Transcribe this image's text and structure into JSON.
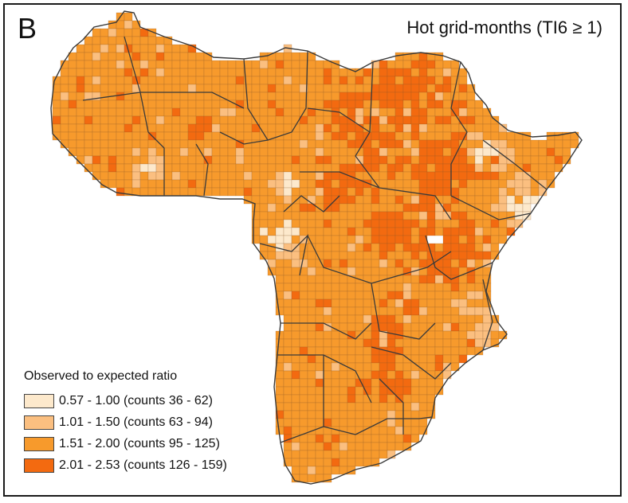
{
  "panel_label": "B",
  "title": "Hot grid-months (TI6 ≥ 1)",
  "legend": {
    "title": "Observed to expected ratio",
    "items": [
      {
        "label": "0.57 - 1.00 (counts 36 - 62)",
        "color": "#fde9cc"
      },
      {
        "label": "1.01 - 1.50 (counts 63 - 94)",
        "color": "#fbbf80"
      },
      {
        "label": "1.51 - 2.00 (counts 95 - 125)",
        "color": "#f79a2c"
      },
      {
        "label": "2.01 - 2.53 (counts 126 - 159)",
        "color": "#f36a10"
      }
    ]
  },
  "colors": {
    "grid_line": "#8a5a2a",
    "border_line": "#3a3a3a",
    "no_data": "#ffffff"
  }
}
